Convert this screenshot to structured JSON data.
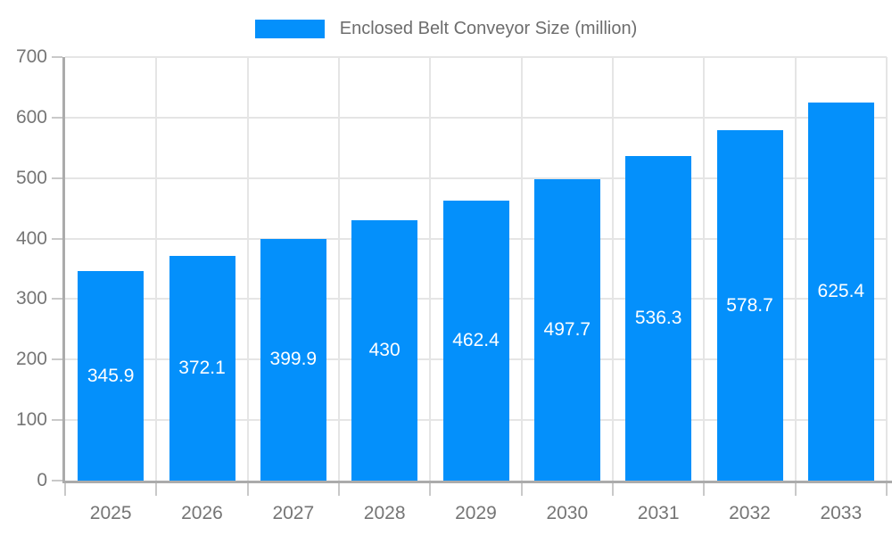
{
  "chart_data": {
    "type": "bar",
    "title": "",
    "legend": "Enclosed Belt Conveyor Size (million)",
    "legend_position": "top",
    "categories": [
      "2025",
      "2026",
      "2027",
      "2028",
      "2029",
      "2030",
      "2031",
      "2032",
      "2033"
    ],
    "series": [
      {
        "name": "Enclosed Belt Conveyor Size (million)",
        "values": [
          345.9,
          372.1,
          399.9,
          430,
          462.4,
          497.7,
          536.3,
          578.7,
          625.4
        ],
        "value_labels": [
          "345.9",
          "372.1",
          "399.9",
          "430",
          "462.4",
          "497.7",
          "536.3",
          "578.7",
          "625.4"
        ]
      }
    ],
    "xlabel": "",
    "ylabel": "",
    "ylim": [
      0,
      700
    ],
    "y_ticks": [
      0,
      100,
      200,
      300,
      400,
      500,
      600,
      700
    ],
    "grid": true,
    "colors": {
      "bar": "#0490fb",
      "grid": "#e5e5e5",
      "axis_line": "#ababab",
      "tick_mark": "#c9c9c9",
      "tick_label": "#757575",
      "legend_text": "#6d6d6d",
      "bar_label": "#ffffff",
      "background": "#ffffff"
    }
  }
}
